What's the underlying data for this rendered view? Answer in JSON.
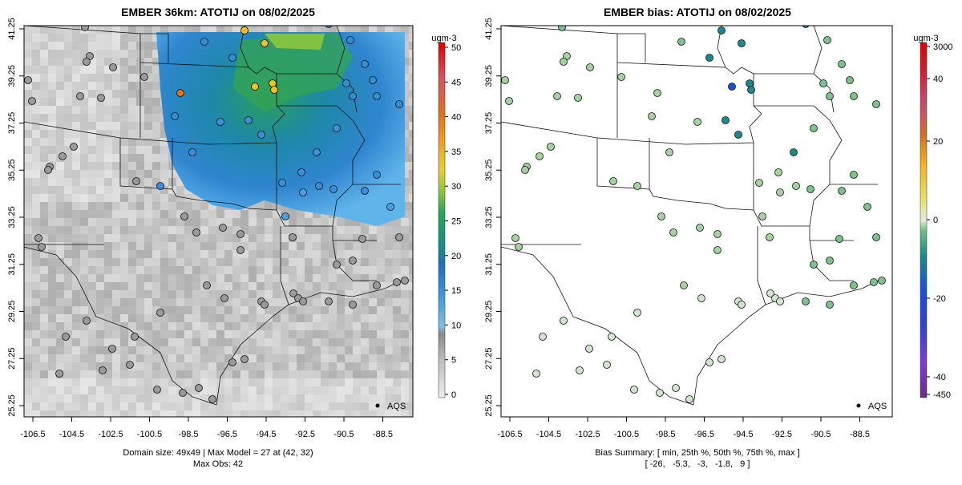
{
  "left_panel": {
    "title": "EMBER 36km: ATOTIJ on 08/02/2025",
    "x_ticks": [
      "-106.5",
      "-104.5",
      "-102.5",
      "-100.5",
      "-98.5",
      "-96.5",
      "-94.5",
      "-92.5",
      "-90.5",
      "-88.5"
    ],
    "y_ticks": [
      "25.25",
      "27.25",
      "29.25",
      "31.25",
      "33.25",
      "35.25",
      "37.25",
      "39.25",
      "41.25"
    ],
    "colorbar": {
      "unit": "ugm-3",
      "ticks": [
        "0",
        "5",
        "10",
        "15",
        "20",
        "25",
        "30",
        "35",
        "40",
        "45",
        "50"
      ],
      "range": [
        0,
        50
      ]
    },
    "legend_label": "AQS",
    "footer_line1": "Domain size: 49x49 | Max Model = 27 at (42, 32)",
    "footer_line2": "Max Obs: 42"
  },
  "right_panel": {
    "title": "EMBER bias: ATOTIJ on 08/02/2025",
    "x_ticks": [
      "-106.5",
      "-104.5",
      "-102.5",
      "-100.5",
      "-98.5",
      "-96.5",
      "-94.5",
      "-92.5",
      "-90.5",
      "-88.5"
    ],
    "y_ticks": [
      "25.25",
      "27.25",
      "29.25",
      "31.25",
      "33.25",
      "35.25",
      "37.25",
      "39.25",
      "41.25"
    ],
    "colorbar": {
      "unit": "ugm-3",
      "ticks": [
        "3000",
        "40",
        "20",
        "0",
        "-20",
        "-40",
        "-450"
      ]
    },
    "legend_label": "AQS",
    "footer_line1": "Bias Summary: [ min, 25th %, 50th %, 75th %, max ]",
    "footer_line2": "[ -26,   -5.3,   -3,   -1.8,   9 ]"
  },
  "bias_summary": {
    "min": -26,
    "p25": -5.3,
    "p50": -3,
    "p75": -1.8,
    "max": 9
  },
  "colors": {
    "model_low": "#d8d8d8",
    "model_mid": "#888888",
    "model_blue": "#3b8fd8",
    "model_green": "#2fa05a",
    "model_yellow": "#e8d040",
    "bias_neutral": "#e8efe2",
    "bias_negative": "#7dc28a"
  }
}
